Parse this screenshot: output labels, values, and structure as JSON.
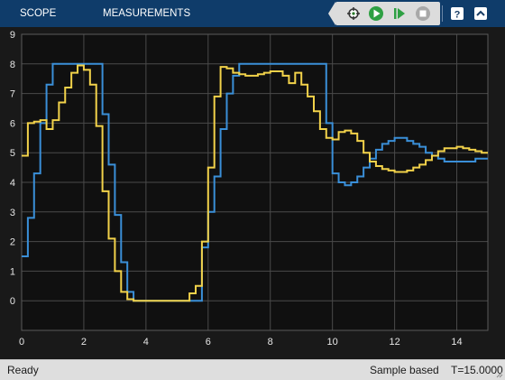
{
  "toolbar": {
    "tabs": [
      {
        "label": "SCOPE"
      },
      {
        "label": "MEASUREMENTS"
      }
    ],
    "buttons": [
      {
        "icon": "signal-select-icon"
      },
      {
        "icon": "run-icon"
      },
      {
        "icon": "step-forward-icon"
      },
      {
        "icon": "stop-icon"
      },
      {
        "icon": "help-icon"
      },
      {
        "icon": "collapse-icon"
      }
    ]
  },
  "status": {
    "left": "Ready",
    "mode": "Sample based",
    "time": "T=15.0000"
  },
  "colors": {
    "toolbar_bg": "#0f3c6a",
    "plot_bg": "#101010",
    "grid": "#4a4a4a",
    "series_blue": "#3a8fd8",
    "series_yellow": "#f2d24a"
  },
  "chart_data": {
    "type": "line",
    "xlim": [
      0,
      15
    ],
    "ylim": [
      -1,
      9
    ],
    "xticks": [
      "0",
      "2",
      "4",
      "6",
      "8",
      "10",
      "12",
      "14"
    ],
    "xtick_values": [
      0,
      2,
      4,
      6,
      8,
      10,
      12,
      14
    ],
    "yticks": [
      "0",
      "1",
      "2",
      "3",
      "4",
      "5",
      "6",
      "7",
      "8",
      "9"
    ],
    "ytick_values": [
      0,
      1,
      2,
      3,
      4,
      5,
      6,
      7,
      8,
      9
    ],
    "grid": true,
    "series": [
      {
        "color": "#3a8fd8",
        "step": true,
        "x": [
          0,
          0.2,
          0.4,
          0.6,
          0.8,
          1.0,
          1.2,
          1.4,
          1.6,
          1.8,
          2.0,
          2.2,
          2.4,
          2.6,
          2.8,
          3.0,
          3.2,
          3.4,
          3.6,
          3.8,
          4.0,
          4.2,
          4.4,
          4.6,
          4.8,
          5.0,
          5.2,
          5.4,
          5.6,
          5.8,
          6.0,
          6.2,
          6.4,
          6.6,
          6.8,
          7.0,
          7.2,
          7.4,
          7.6,
          7.8,
          8.0,
          8.2,
          8.4,
          8.6,
          8.8,
          9.0,
          9.2,
          9.4,
          9.6,
          9.8,
          10.0,
          10.2,
          10.4,
          10.6,
          10.8,
          11.0,
          11.2,
          11.4,
          11.6,
          11.8,
          12.0,
          12.2,
          12.4,
          12.6,
          12.8,
          13.0,
          13.2,
          13.4,
          13.6,
          13.8,
          14.0,
          14.2,
          14.4,
          14.6,
          14.8,
          15.0
        ],
        "y": [
          1.5,
          2.8,
          4.3,
          6.0,
          7.3,
          8.0,
          8.0,
          8.0,
          8.0,
          8.0,
          8.0,
          8.0,
          8.0,
          6.3,
          4.6,
          2.9,
          1.3,
          0.3,
          0.0,
          0.0,
          0.0,
          0.0,
          0.0,
          0.0,
          0.0,
          0.0,
          0.0,
          0.0,
          0.0,
          1.8,
          3.0,
          4.2,
          5.8,
          7.0,
          7.6,
          8.0,
          8.0,
          8.0,
          8.0,
          8.0,
          8.0,
          8.0,
          8.0,
          8.0,
          8.0,
          8.0,
          8.0,
          8.0,
          8.0,
          6.0,
          4.3,
          4.0,
          3.9,
          4.0,
          4.2,
          4.5,
          4.8,
          5.1,
          5.3,
          5.4,
          5.5,
          5.5,
          5.4,
          5.3,
          5.2,
          5.0,
          4.9,
          4.8,
          4.7,
          4.7,
          4.7,
          4.7,
          4.7,
          4.8,
          4.8,
          4.8
        ]
      },
      {
        "color": "#f2d24a",
        "step": true,
        "x": [
          0,
          0.2,
          0.4,
          0.6,
          0.8,
          1.0,
          1.2,
          1.4,
          1.6,
          1.8,
          2.0,
          2.2,
          2.4,
          2.6,
          2.8,
          3.0,
          3.2,
          3.4,
          3.6,
          3.8,
          4.0,
          4.2,
          4.4,
          4.6,
          4.8,
          5.0,
          5.2,
          5.4,
          5.6,
          5.8,
          6.0,
          6.2,
          6.4,
          6.6,
          6.8,
          7.0,
          7.2,
          7.4,
          7.6,
          7.8,
          8.0,
          8.2,
          8.4,
          8.6,
          8.8,
          9.0,
          9.2,
          9.4,
          9.6,
          9.8,
          10.0,
          10.2,
          10.4,
          10.6,
          10.8,
          11.0,
          11.2,
          11.4,
          11.6,
          11.8,
          12.0,
          12.2,
          12.4,
          12.6,
          12.8,
          13.0,
          13.2,
          13.4,
          13.6,
          13.8,
          14.0,
          14.2,
          14.4,
          14.6,
          14.8,
          15.0
        ],
        "y": [
          4.9,
          6.0,
          6.05,
          6.1,
          5.8,
          6.1,
          6.7,
          7.2,
          7.7,
          7.95,
          7.8,
          7.3,
          5.9,
          3.7,
          2.1,
          1.0,
          0.3,
          0.05,
          0.0,
          0.0,
          0.0,
          0.0,
          0.0,
          0.0,
          0.0,
          0.0,
          0.0,
          0.25,
          0.5,
          2.0,
          4.5,
          6.9,
          7.9,
          7.85,
          7.7,
          7.65,
          7.6,
          7.6,
          7.65,
          7.7,
          7.75,
          7.75,
          7.6,
          7.35,
          7.7,
          7.3,
          6.9,
          6.4,
          5.8,
          5.5,
          5.45,
          5.7,
          5.75,
          5.65,
          5.4,
          5.0,
          4.7,
          4.55,
          4.45,
          4.4,
          4.35,
          4.35,
          4.4,
          4.5,
          4.6,
          4.75,
          4.9,
          5.05,
          5.15,
          5.15,
          5.2,
          5.15,
          5.1,
          5.05,
          5.0,
          5.0
        ]
      }
    ]
  }
}
